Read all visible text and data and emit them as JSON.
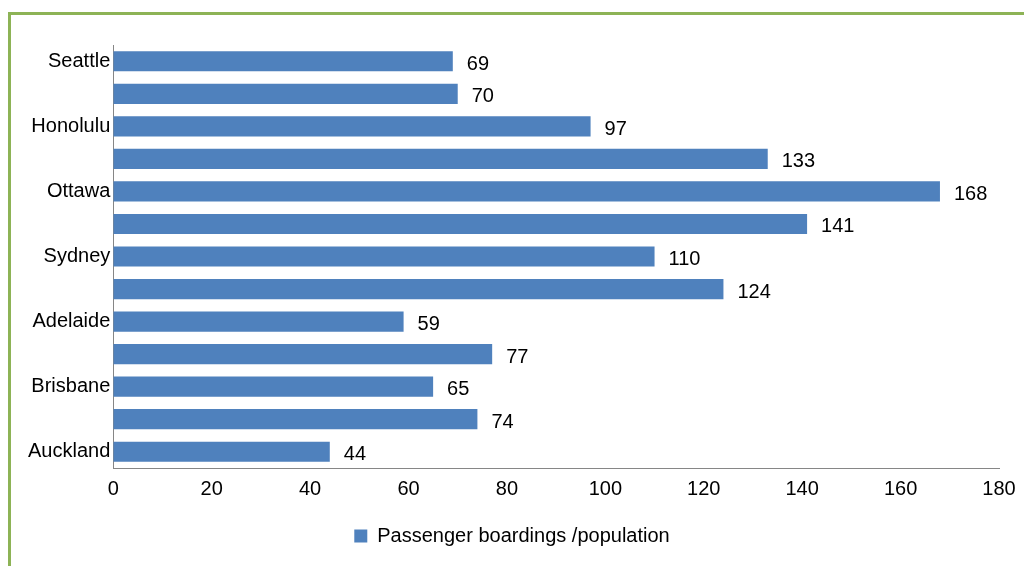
{
  "chart_data": {
    "type": "bar",
    "orientation": "horizontal",
    "categories": [
      "Seattle",
      null,
      "Honolulu",
      null,
      "Ottawa",
      null,
      "Sydney",
      null,
      "Adelaide",
      null,
      "Brisbane",
      null,
      "Auckland"
    ],
    "series": [
      {
        "name": "Passenger boardings /population",
        "color": "#4f81bd",
        "values": [
          69,
          70,
          97,
          133,
          168,
          141,
          110,
          124,
          59,
          77,
          65,
          74,
          44
        ]
      }
    ],
    "xlim": [
      0,
      180
    ],
    "xticks": [
      0,
      20,
      40,
      60,
      80,
      100,
      120,
      140,
      160,
      180
    ],
    "data_labels": true,
    "grid": false,
    "legend": "bottom"
  }
}
